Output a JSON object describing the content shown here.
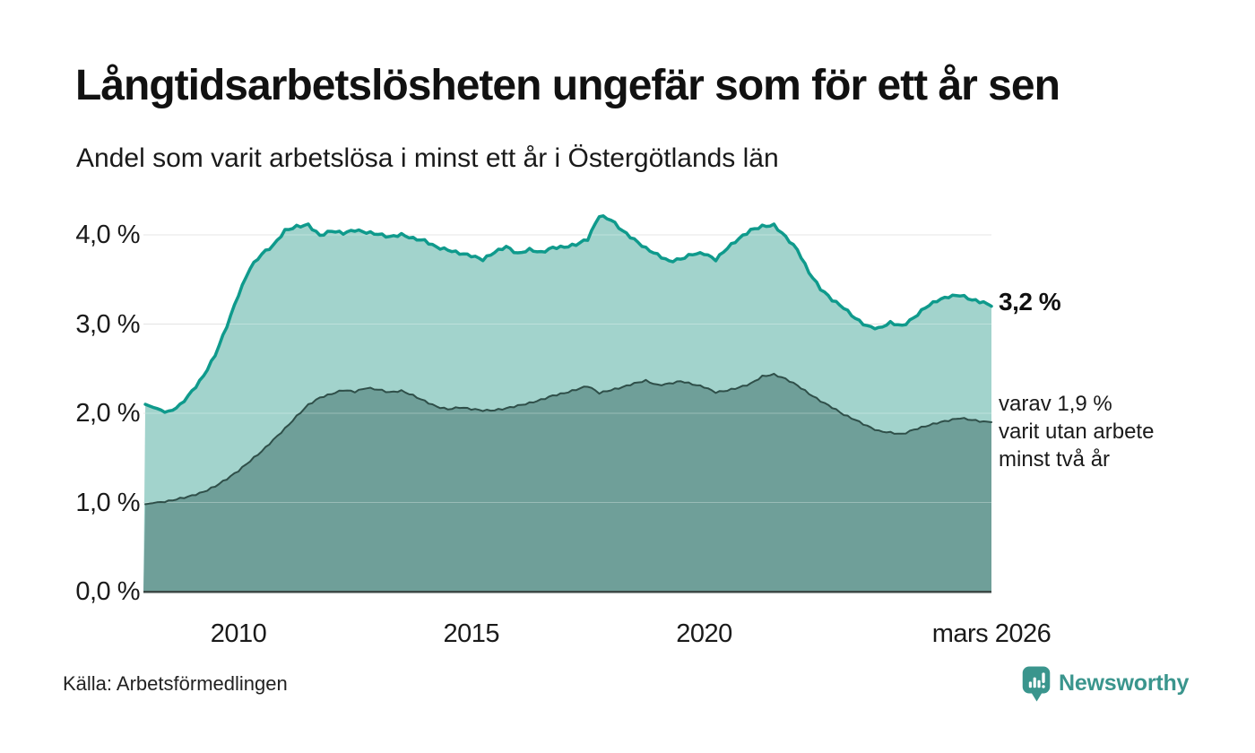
{
  "header": {
    "title": "Långtidsarbetslösheten ungefär som för ett år sen",
    "subtitle": "Andel som varit arbetslösa i minst ett år i Östergötlands län"
  },
  "chart_data": {
    "type": "area",
    "title": "Långtidsarbetslösheten ungefär som för ett år sen",
    "subtitle": "Andel som varit arbetslösa i minst ett år i Östergötlands län",
    "unit": "%",
    "xlim": [
      2007.96,
      2026.17
    ],
    "ylim": [
      0,
      4.3
    ],
    "grid": "horizontal",
    "legend_position": "right-annotations",
    "x": [
      2008.0,
      2008.25,
      2008.5,
      2008.75,
      2009.0,
      2009.25,
      2009.5,
      2009.75,
      2010.0,
      2010.25,
      2010.5,
      2010.75,
      2011.0,
      2011.25,
      2011.5,
      2011.75,
      2012.0,
      2012.25,
      2012.5,
      2012.75,
      2013.0,
      2013.25,
      2013.5,
      2013.75,
      2014.0,
      2014.25,
      2014.5,
      2014.75,
      2015.0,
      2015.25,
      2015.5,
      2015.75,
      2016.0,
      2016.25,
      2016.5,
      2016.75,
      2017.0,
      2017.25,
      2017.5,
      2017.75,
      2018.0,
      2018.25,
      2018.5,
      2018.75,
      2019.0,
      2019.25,
      2019.5,
      2019.75,
      2020.0,
      2020.25,
      2020.5,
      2020.75,
      2021.0,
      2021.25,
      2021.5,
      2021.75,
      2022.0,
      2022.25,
      2022.5,
      2022.75,
      2023.0,
      2023.25,
      2023.5,
      2023.75,
      2024.0,
      2024.25,
      2024.5,
      2024.75,
      2025.0,
      2025.25,
      2025.5,
      2025.75,
      2026.0,
      2026.17
    ],
    "series": [
      {
        "name": "Andel som varit arbetslösa i minst ett år",
        "current_value": "3,2 %",
        "line_color": "#0f9a8c",
        "fill_color": "#a2d3cc",
        "values": [
          2.1,
          2.05,
          2.02,
          2.1,
          2.25,
          2.42,
          2.65,
          2.97,
          3.32,
          3.62,
          3.78,
          3.88,
          4.05,
          4.1,
          4.12,
          4.0,
          4.05,
          4.02,
          4.05,
          4.02,
          4.0,
          3.97,
          4.0,
          3.96,
          3.94,
          3.87,
          3.84,
          3.8,
          3.77,
          3.72,
          3.8,
          3.86,
          3.78,
          3.83,
          3.8,
          3.86,
          3.87,
          3.9,
          3.96,
          4.22,
          4.17,
          4.04,
          3.94,
          3.84,
          3.77,
          3.7,
          3.73,
          3.79,
          3.8,
          3.73,
          3.86,
          3.96,
          4.05,
          4.09,
          4.1,
          3.97,
          3.83,
          3.58,
          3.4,
          3.28,
          3.19,
          3.07,
          2.98,
          2.95,
          3.01,
          2.97,
          3.06,
          3.18,
          3.26,
          3.31,
          3.33,
          3.28,
          3.25,
          3.2
        ]
      },
      {
        "name": "varav utan arbete minst två år",
        "current_value": "1,9 %",
        "line_color": "#2f4f49",
        "fill_color": "#6f9f99",
        "values": [
          0.98,
          1.0,
          1.02,
          1.05,
          1.08,
          1.12,
          1.18,
          1.26,
          1.35,
          1.46,
          1.57,
          1.7,
          1.83,
          1.97,
          2.1,
          2.18,
          2.22,
          2.26,
          2.24,
          2.28,
          2.26,
          2.23,
          2.25,
          2.2,
          2.14,
          2.08,
          2.05,
          2.07,
          2.05,
          2.03,
          2.03,
          2.05,
          2.08,
          2.11,
          2.15,
          2.2,
          2.23,
          2.27,
          2.31,
          2.23,
          2.26,
          2.29,
          2.33,
          2.36,
          2.31,
          2.33,
          2.36,
          2.33,
          2.3,
          2.24,
          2.26,
          2.29,
          2.33,
          2.41,
          2.43,
          2.38,
          2.31,
          2.22,
          2.14,
          2.07,
          1.99,
          1.93,
          1.86,
          1.8,
          1.78,
          1.76,
          1.81,
          1.85,
          1.89,
          1.92,
          1.95,
          1.93,
          1.91,
          1.9
        ]
      }
    ],
    "x_ticks": [
      {
        "x": 2010,
        "label": "2010"
      },
      {
        "x": 2015,
        "label": "2015"
      },
      {
        "x": 2020,
        "label": "2020"
      },
      {
        "x": 2026.17,
        "label": "mars 2026"
      }
    ],
    "y_ticks": [
      {
        "v": 0,
        "label": "0,0 %"
      },
      {
        "v": 1,
        "label": "1,0 %"
      },
      {
        "v": 2,
        "label": "2,0 %"
      },
      {
        "v": 3,
        "label": "3,0 %"
      },
      {
        "v": 4,
        "label": "4,0 %"
      }
    ],
    "gridline_values": [
      1,
      2,
      3,
      4
    ],
    "end_label": "3,2 %",
    "annotation": {
      "line1": "varav 1,9 %",
      "line2": "varit utan arbete",
      "line3": "minst två år"
    }
  },
  "colors": {
    "series1_line": "#0f9a8c",
    "series1_fill": "#a2d3cc",
    "series2_line": "#2f4f49",
    "series2_fill": "#6f9f99",
    "gridline": "#d8d8d8",
    "baseline": "#3c4946",
    "brand_teal": "#3a958d",
    "text": "#1a1a1a"
  },
  "footer": {
    "source": "Källa: Arbetsförmedlingen",
    "brand": "Newsworthy"
  }
}
